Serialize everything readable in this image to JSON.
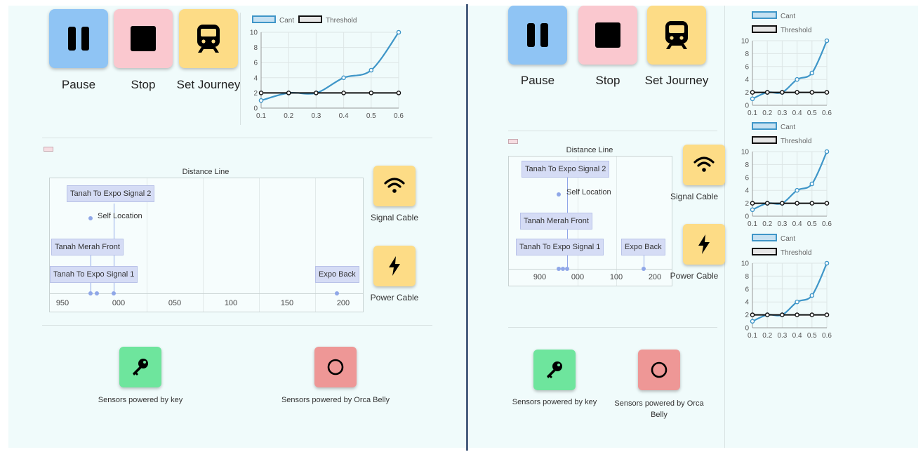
{
  "controls": {
    "pause_label": "Pause",
    "stop_label": "Stop",
    "journey_label": "Set Journey"
  },
  "cables": {
    "signal_label": "Signal Cable",
    "power_label": "Power Cable"
  },
  "distance_line": {
    "title": "Distance Line",
    "left_ticks": [
      "950",
      "000",
      "050",
      "100",
      "150",
      "200"
    ],
    "right_ticks": [
      "900",
      "000",
      "100",
      "200"
    ],
    "labels": {
      "signal2": "Tanah To Expo Signal 2",
      "self": "Self Location",
      "merah": "Tanah Merah Front",
      "signal1": "Tanah To Expo Signal 1",
      "expo": "Expo Back"
    }
  },
  "sensors": {
    "key_label": "Sensors powered by key",
    "orca_label": "Sensors powered by Orca Belly"
  },
  "colors": {
    "cant_line": "#3f96c8",
    "threshold_line": "#111111",
    "pause": "#8fc4f4",
    "stop": "#fac8cf",
    "journey": "#fddc86",
    "key": "#6ee59d",
    "orca": "#ee9796"
  },
  "chart_data": [
    {
      "type": "line",
      "x": [
        0.1,
        0.2,
        0.3,
        0.4,
        0.5,
        0.6
      ],
      "series": [
        {
          "name": "Cant",
          "values": [
            1,
            2,
            2,
            4,
            5,
            10
          ]
        },
        {
          "name": "Threshold",
          "values": [
            2,
            2,
            2,
            2,
            2,
            2
          ]
        }
      ],
      "xticks": [
        "0.1",
        "0.2",
        "0.3",
        "0.4",
        "0.5",
        "0.6"
      ],
      "yticks": [
        "0",
        "2",
        "4",
        "6",
        "8",
        "10"
      ],
      "ylim": [
        0,
        10
      ],
      "legend": "top"
    },
    {
      "type": "line",
      "x": [
        0.1,
        0.2,
        0.3,
        0.4,
        0.5,
        0.6
      ],
      "series": [
        {
          "name": "Cant",
          "values": [
            1,
            2,
            2,
            4,
            5,
            10
          ]
        },
        {
          "name": "Threshold",
          "values": [
            2,
            2,
            2,
            2,
            2,
            2
          ]
        }
      ],
      "xticks": [
        "0.1",
        "0.2",
        "0.3",
        "0.4",
        "0.5",
        "0.6"
      ],
      "yticks": [
        "0",
        "2",
        "4",
        "6",
        "8",
        "10"
      ],
      "ylim": [
        0,
        10
      ],
      "legend": "top"
    },
    {
      "type": "line",
      "x": [
        0.1,
        0.2,
        0.3,
        0.4,
        0.5,
        0.6
      ],
      "series": [
        {
          "name": "Cant",
          "values": [
            1,
            2,
            2,
            4,
            5,
            10
          ]
        },
        {
          "name": "Threshold",
          "values": [
            2,
            2,
            2,
            2,
            2,
            2
          ]
        }
      ],
      "xticks": [
        "0.1",
        "0.2",
        "0.3",
        "0.4",
        "0.5",
        "0.6"
      ],
      "yticks": [
        "0",
        "2",
        "4",
        "6",
        "8",
        "10"
      ],
      "ylim": [
        0,
        10
      ],
      "legend": "top"
    },
    {
      "type": "line",
      "x": [
        0.1,
        0.2,
        0.3,
        0.4,
        0.5,
        0.6
      ],
      "series": [
        {
          "name": "Cant",
          "values": [
            1,
            2,
            2,
            4,
            5,
            10
          ]
        },
        {
          "name": "Threshold",
          "values": [
            2,
            2,
            2,
            2,
            2,
            2
          ]
        }
      ],
      "xticks": [
        "0.1",
        "0.2",
        "0.3",
        "0.4",
        "0.5",
        "0.6"
      ],
      "yticks": [
        "0",
        "2",
        "4",
        "6",
        "8",
        "10"
      ],
      "ylim": [
        0,
        10
      ],
      "legend": "top"
    }
  ]
}
